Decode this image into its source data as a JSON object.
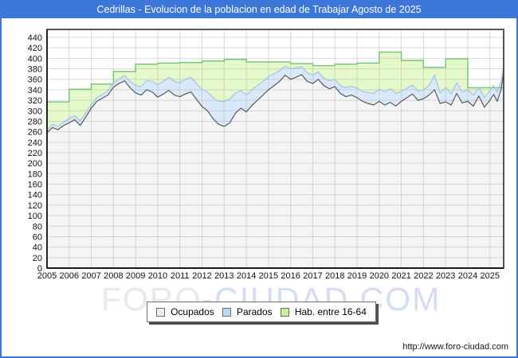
{
  "window": {
    "title": "Cedrillas - Evolucion de la poblacion en edad de Trabajar Agosto de 2025",
    "footer_url": "http://www.foro-ciudad.com"
  },
  "colors": {
    "title_bar": "#3b76d8",
    "frame": "#3b76d8",
    "grid": "#b0b0b0",
    "plot_border": "#2f2f2f",
    "watermark_left": "#e9e9e9",
    "watermark_right": "#d4dcf4"
  },
  "watermark": {
    "left": "FORO",
    "right": "-CIUDAD.COM"
  },
  "legend": {
    "items": [
      {
        "label": "Ocupados",
        "swatch": "#ededed",
        "swatch_border": "#6e6e6e"
      },
      {
        "label": "Parados",
        "swatch": "#bdd7f0",
        "swatch_border": "#6e6e6e"
      },
      {
        "label": "Hab. entre 16-64",
        "swatch": "#c9ee96",
        "swatch_border": "#6e6e6e"
      }
    ]
  },
  "chart_data": {
    "type": "area",
    "title": "Cedrillas - Evolucion de la poblacion en edad de Trabajar Agosto de 2025",
    "xlabel": "",
    "ylabel": "",
    "x_start": 2005,
    "x_end": 2025.62,
    "y_min": 0,
    "y_max": 440,
    "y_step": 20,
    "x_ticks": [
      2005,
      2006,
      2007,
      2008,
      2009,
      2010,
      2011,
      2012,
      2013,
      2014,
      2015,
      2016,
      2017,
      2018,
      2019,
      2020,
      2021,
      2022,
      2023,
      2024,
      2025
    ],
    "grid": true,
    "legend_position": "bottom",
    "series": [
      {
        "name": "Ocupados",
        "kind": "line-area",
        "fill": "#f4f4f4",
        "stroke": "#4f4f4f",
        "x": [
          2005,
          2005.25,
          2005.5,
          2005.75,
          2006,
          2006.25,
          2006.5,
          2006.75,
          2007,
          2007.25,
          2007.5,
          2007.75,
          2008,
          2008.25,
          2008.5,
          2008.75,
          2009,
          2009.25,
          2009.5,
          2009.75,
          2010,
          2010.25,
          2010.5,
          2010.75,
          2011,
          2011.25,
          2011.5,
          2011.75,
          2012,
          2012.25,
          2012.5,
          2012.75,
          2013,
          2013.25,
          2013.5,
          2013.75,
          2014,
          2014.25,
          2014.5,
          2014.75,
          2015,
          2015.25,
          2015.5,
          2015.75,
          2016,
          2016.25,
          2016.5,
          2016.75,
          2017,
          2017.25,
          2017.5,
          2017.75,
          2018,
          2018.25,
          2018.5,
          2018.75,
          2019,
          2019.25,
          2019.5,
          2019.75,
          2020,
          2020.25,
          2020.5,
          2020.75,
          2021,
          2021.25,
          2021.5,
          2021.75,
          2022,
          2022.25,
          2022.5,
          2022.75,
          2023,
          2023.25,
          2023.5,
          2023.75,
          2024,
          2024.25,
          2024.5,
          2024.75,
          2025,
          2025.17,
          2025.33,
          2025.5,
          2025.62
        ],
        "values": [
          258,
          268,
          264,
          272,
          277,
          283,
          272,
          288,
          305,
          318,
          324,
          330,
          345,
          352,
          357,
          344,
          334,
          330,
          340,
          336,
          326,
          332,
          339,
          330,
          327,
          332,
          336,
          322,
          308,
          300,
          285,
          274,
          270,
          277,
          295,
          305,
          298,
          310,
          320,
          330,
          340,
          348,
          356,
          368,
          360,
          364,
          369,
          356,
          352,
          360,
          348,
          342,
          346,
          333,
          327,
          330,
          325,
          318,
          314,
          311,
          318,
          311,
          316,
          309,
          318,
          325,
          332,
          320,
          323,
          330,
          340,
          314,
          317,
          311,
          333,
          315,
          318,
          309,
          328,
          307,
          320,
          331,
          318,
          340,
          372
        ]
      },
      {
        "name": "Parados",
        "kind": "stacked-band",
        "stacked_on": "Ocupados",
        "fill": "#d9e9f9",
        "stroke": "#9fc0e8",
        "values": [
          5,
          6,
          6,
          7,
          8,
          8,
          9,
          8,
          7,
          7,
          7,
          8,
          8,
          9,
          10,
          12,
          14,
          16,
          18,
          20,
          24,
          24,
          25,
          26,
          26,
          28,
          28,
          30,
          32,
          36,
          40,
          44,
          48,
          46,
          38,
          34,
          32,
          30,
          28,
          26,
          25,
          23,
          20,
          17,
          20,
          18,
          15,
          16,
          16,
          14,
          14,
          15,
          14,
          15,
          17,
          17,
          18,
          19,
          21,
          22,
          23,
          25,
          26,
          24,
          19,
          18,
          17,
          17,
          17,
          18,
          28,
          20,
          27,
          22,
          21,
          21,
          22,
          21,
          16,
          18,
          19,
          17,
          18,
          16,
          15
        ]
      },
      {
        "name": "Hab. entre 16-64",
        "kind": "step-area",
        "fill": "#e4f8c9",
        "stroke": "#74c274",
        "years": [
          2005,
          2006,
          2007,
          2008,
          2009,
          2010,
          2011,
          2012,
          2013,
          2014,
          2015,
          2016,
          2017,
          2018,
          2019,
          2020,
          2021,
          2022,
          2023,
          2024,
          2025
        ],
        "values": [
          317,
          341,
          351,
          375,
          389,
          391,
          392,
          395,
          398,
          393,
          393,
          390,
          386,
          389,
          391,
          412,
          396,
          383,
          399,
          344,
          344
        ]
      }
    ]
  }
}
